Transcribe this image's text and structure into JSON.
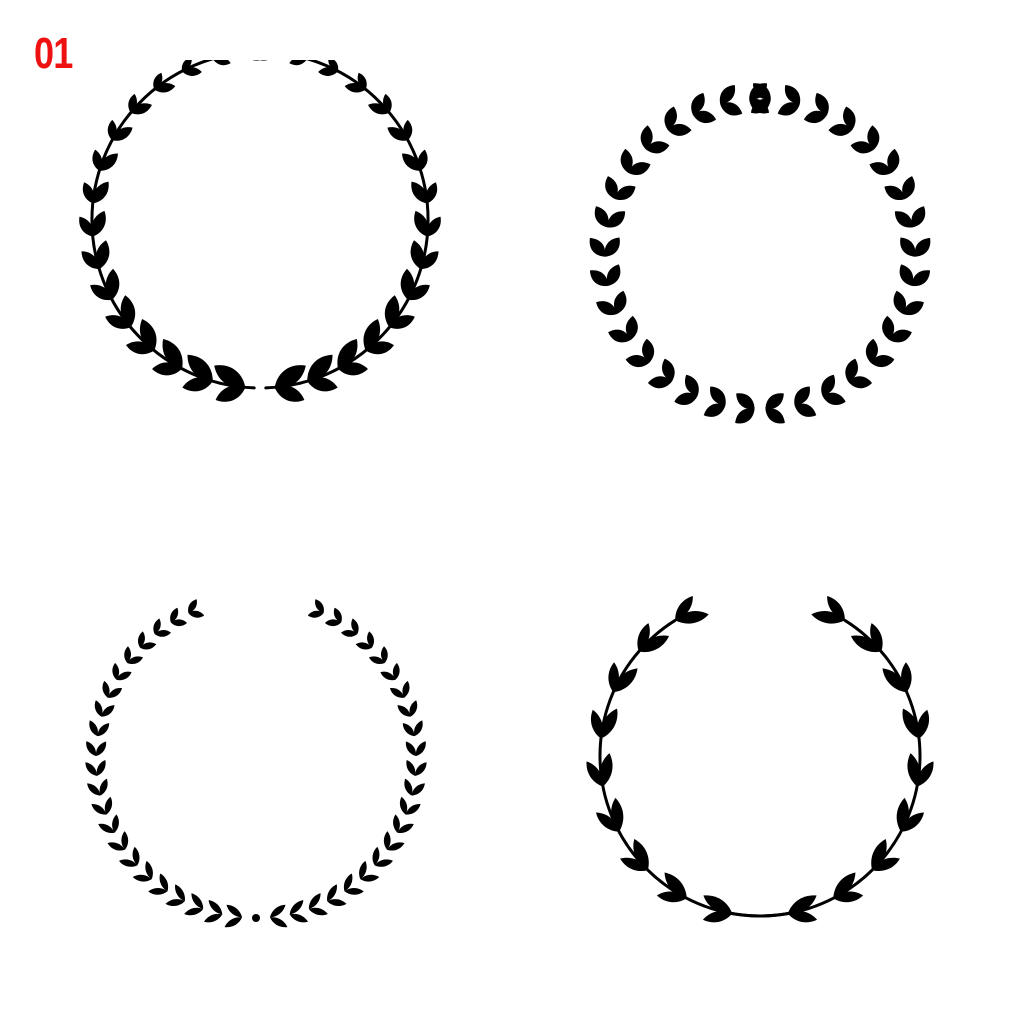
{
  "sheet": {
    "number": "01",
    "number_color": "#ee1111"
  },
  "colors": {
    "background": "#ffffff",
    "ink": "#000000"
  },
  "wreaths": [
    {
      "name": "laurel-wreath-broad-leaf-icon",
      "style": "broad leaves on a double stem"
    },
    {
      "name": "laurel-wreath-closed-ring-icon",
      "style": "chevron leaves forming a nearly closed ring"
    },
    {
      "name": "laurel-wreath-fine-leaf-icon",
      "style": "small pointed leaves with a center dot"
    },
    {
      "name": "olive-wreath-berry-icon",
      "style": "olive leaves and berries on crossed stems"
    }
  ]
}
